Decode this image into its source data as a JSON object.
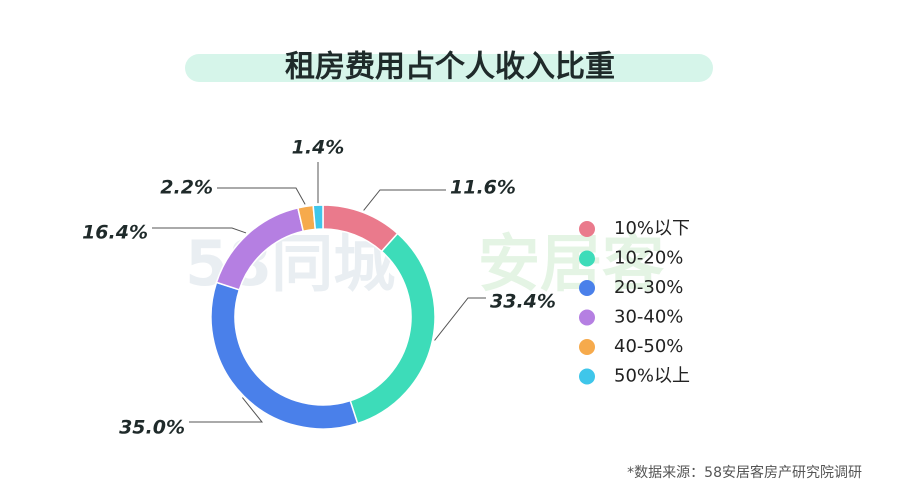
{
  "chart_data": {
    "type": "donut",
    "title": "租房费用占个人收入比重",
    "categories": [
      "10%以下",
      "10-20%",
      "20-30%",
      "30-40%",
      "40-50%",
      "50%以上"
    ],
    "values": [
      11.6,
      33.4,
      35.0,
      16.4,
      2.2,
      1.4
    ],
    "value_labels": [
      "11.6%",
      "33.4%",
      "35.0%",
      "16.4%",
      "2.2%",
      "1.4%"
    ],
    "colors": [
      "#ea7a8c",
      "#3ddcb9",
      "#4a80ea",
      "#b57fe2",
      "#f6aa4c",
      "#3fc6ea"
    ],
    "legend": "right",
    "watermark": [
      "58同城",
      "安居客"
    ],
    "source": "*数据来源：58安居客房产研究院调研"
  }
}
